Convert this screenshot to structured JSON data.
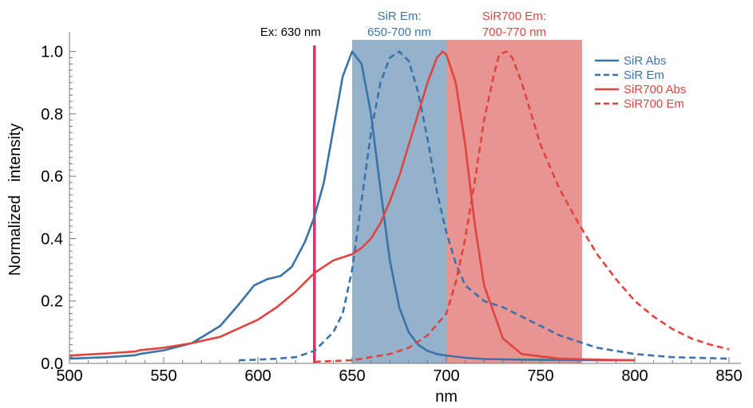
{
  "chart_data": {
    "type": "line",
    "xlabel": "nm",
    "ylabel": "Normalized   intensity",
    "xlim": [
      500,
      850
    ],
    "ylim": [
      0,
      1.05
    ],
    "xticks": [
      500,
      550,
      600,
      650,
      700,
      750,
      800,
      850
    ],
    "yticks": [
      0.0,
      0.2,
      0.4,
      0.6,
      0.8,
      1.0
    ],
    "ytick_labels": [
      "0.0",
      "0.2",
      "0.4",
      "0.6",
      "0.8",
      "1.0"
    ],
    "grid": false,
    "legend_position": "top-right",
    "excitation": {
      "label": "Ex: 630 nm",
      "x": 630,
      "color": "#d6336c"
    },
    "bands": [
      {
        "label_line1": "SiR Em:",
        "label_line2": "650-700 nm",
        "x0": 650,
        "x1": 700,
        "color": "#4f7eaa",
        "label_color": "#3d77a8"
      },
      {
        "label_line1": "SiR700 Em:",
        "label_line2": "700-770 nm",
        "x0": 700,
        "x1": 772,
        "color": "#d9534f",
        "label_color": "#e0443f"
      }
    ],
    "series": [
      {
        "name": "SiR Abs",
        "color": "#3b73a8",
        "dash": false,
        "x": [
          500,
          520,
          535,
          537,
          550,
          565,
          580,
          590,
          598,
          605,
          612,
          618,
          625,
          630,
          635,
          640,
          645,
          650,
          655,
          660,
          665,
          670,
          675,
          680,
          685,
          690,
          695,
          700,
          710,
          720,
          740,
          760,
          780,
          800
        ],
        "y": [
          0.015,
          0.02,
          0.026,
          0.03,
          0.042,
          0.065,
          0.12,
          0.19,
          0.25,
          0.27,
          0.28,
          0.31,
          0.39,
          0.47,
          0.58,
          0.75,
          0.92,
          1.0,
          0.96,
          0.8,
          0.56,
          0.33,
          0.18,
          0.1,
          0.06,
          0.04,
          0.03,
          0.025,
          0.018,
          0.014,
          0.012,
          0.011,
          0.01,
          0.01
        ]
      },
      {
        "name": "SiR Em",
        "color": "#3b73a8",
        "dash": true,
        "x": [
          590,
          600,
          610,
          620,
          630,
          640,
          645,
          650,
          655,
          660,
          665,
          670,
          675,
          680,
          685,
          690,
          695,
          700,
          705,
          710,
          720,
          730,
          740,
          750,
          760,
          780,
          800,
          820,
          850
        ],
        "y": [
          0.01,
          0.012,
          0.015,
          0.02,
          0.04,
          0.1,
          0.16,
          0.3,
          0.52,
          0.74,
          0.9,
          0.98,
          1.0,
          0.97,
          0.87,
          0.72,
          0.55,
          0.42,
          0.32,
          0.25,
          0.2,
          0.18,
          0.15,
          0.12,
          0.09,
          0.05,
          0.03,
          0.02,
          0.015
        ]
      },
      {
        "name": "SiR700 Abs",
        "color": "#e0443f",
        "dash": false,
        "x": [
          500,
          520,
          535,
          537,
          550,
          565,
          580,
          600,
          610,
          620,
          630,
          640,
          650,
          655,
          660,
          665,
          670,
          675,
          680,
          685,
          690,
          695,
          698,
          700,
          705,
          710,
          715,
          720,
          730,
          740,
          760,
          780,
          800
        ],
        "y": [
          0.025,
          0.032,
          0.038,
          0.042,
          0.05,
          0.065,
          0.085,
          0.14,
          0.18,
          0.23,
          0.29,
          0.33,
          0.35,
          0.37,
          0.4,
          0.45,
          0.52,
          0.6,
          0.7,
          0.8,
          0.9,
          0.98,
          1.0,
          0.99,
          0.9,
          0.7,
          0.45,
          0.25,
          0.08,
          0.03,
          0.015,
          0.012,
          0.01
        ]
      },
      {
        "name": "SiR700 Em",
        "color": "#e0443f",
        "dash": true,
        "x": [
          630,
          650,
          660,
          670,
          680,
          690,
          700,
          705,
          710,
          715,
          720,
          725,
          728,
          732,
          735,
          740,
          745,
          750,
          760,
          770,
          780,
          790,
          800,
          810,
          820,
          830,
          840,
          850
        ],
        "y": [
          0.005,
          0.01,
          0.02,
          0.03,
          0.05,
          0.09,
          0.16,
          0.26,
          0.4,
          0.58,
          0.78,
          0.92,
          0.99,
          1.0,
          0.98,
          0.9,
          0.8,
          0.7,
          0.56,
          0.45,
          0.35,
          0.27,
          0.2,
          0.15,
          0.11,
          0.08,
          0.06,
          0.045
        ]
      }
    ]
  }
}
